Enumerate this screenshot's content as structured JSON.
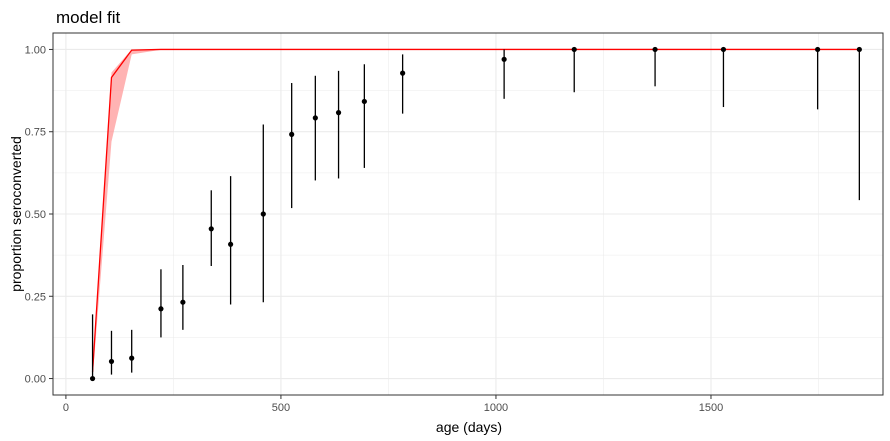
{
  "chart_data": {
    "type": "scatter",
    "title": "model fit",
    "xlabel": "age (days)",
    "ylabel": "proportion seroconverted",
    "xlim": [
      -30,
      1900
    ],
    "ylim": [
      -0.05,
      1.05
    ],
    "x_ticks": [
      0,
      500,
      1000,
      1500
    ],
    "y_ticks": [
      0.0,
      0.25,
      0.5,
      0.75,
      1.0
    ],
    "x_tick_labels": [
      "0",
      "500",
      "1000",
      "1500"
    ],
    "y_tick_labels": [
      "0.00",
      "0.25",
      "0.50",
      "0.75",
      "1.00"
    ],
    "grid": true,
    "colors": {
      "fit_line": "#ff0000",
      "fit_band": "#ff9a9a",
      "points": "#000000",
      "grid": "#ebebeb",
      "panel_border": "#333333"
    },
    "points": [
      {
        "x": 62,
        "y": 0.0,
        "lower": 0.0,
        "upper": 0.195
      },
      {
        "x": 106,
        "y": 0.052,
        "lower": 0.012,
        "upper": 0.145
      },
      {
        "x": 153,
        "y": 0.062,
        "lower": 0.018,
        "upper": 0.148
      },
      {
        "x": 221,
        "y": 0.212,
        "lower": 0.125,
        "upper": 0.332
      },
      {
        "x": 272,
        "y": 0.232,
        "lower": 0.148,
        "upper": 0.345
      },
      {
        "x": 338,
        "y": 0.455,
        "lower": 0.342,
        "upper": 0.572
      },
      {
        "x": 383,
        "y": 0.408,
        "lower": 0.225,
        "upper": 0.615
      },
      {
        "x": 459,
        "y": 0.5,
        "lower": 0.232,
        "upper": 0.772
      },
      {
        "x": 525,
        "y": 0.742,
        "lower": 0.518,
        "upper": 0.898
      },
      {
        "x": 580,
        "y": 0.792,
        "lower": 0.602,
        "upper": 0.92
      },
      {
        "x": 634,
        "y": 0.808,
        "lower": 0.608,
        "upper": 0.935
      },
      {
        "x": 694,
        "y": 0.842,
        "lower": 0.64,
        "upper": 0.955
      },
      {
        "x": 783,
        "y": 0.928,
        "lower": 0.805,
        "upper": 0.985
      },
      {
        "x": 1019,
        "y": 0.97,
        "lower": 0.85,
        "upper": 1.0
      },
      {
        "x": 1182,
        "y": 1.0,
        "lower": 0.87,
        "upper": 1.0
      },
      {
        "x": 1370,
        "y": 1.0,
        "lower": 0.888,
        "upper": 1.0
      },
      {
        "x": 1529,
        "y": 1.0,
        "lower": 0.825,
        "upper": 1.0
      },
      {
        "x": 1748,
        "y": 1.0,
        "lower": 0.818,
        "upper": 1.0
      },
      {
        "x": 1845,
        "y": 1.0,
        "lower": 0.542,
        "upper": 1.0
      }
    ],
    "fit_line": {
      "x": [
        62,
        106,
        153,
        221,
        1845
      ],
      "y": [
        0.02,
        0.915,
        0.998,
        1.0,
        1.0
      ]
    },
    "fit_band": {
      "x": [
        62,
        106,
        153,
        221,
        1845
      ],
      "lower": [
        0.0,
        0.72,
        0.985,
        0.999,
        1.0
      ],
      "upper": [
        0.03,
        0.93,
        1.0,
        1.0,
        1.0
      ]
    }
  }
}
